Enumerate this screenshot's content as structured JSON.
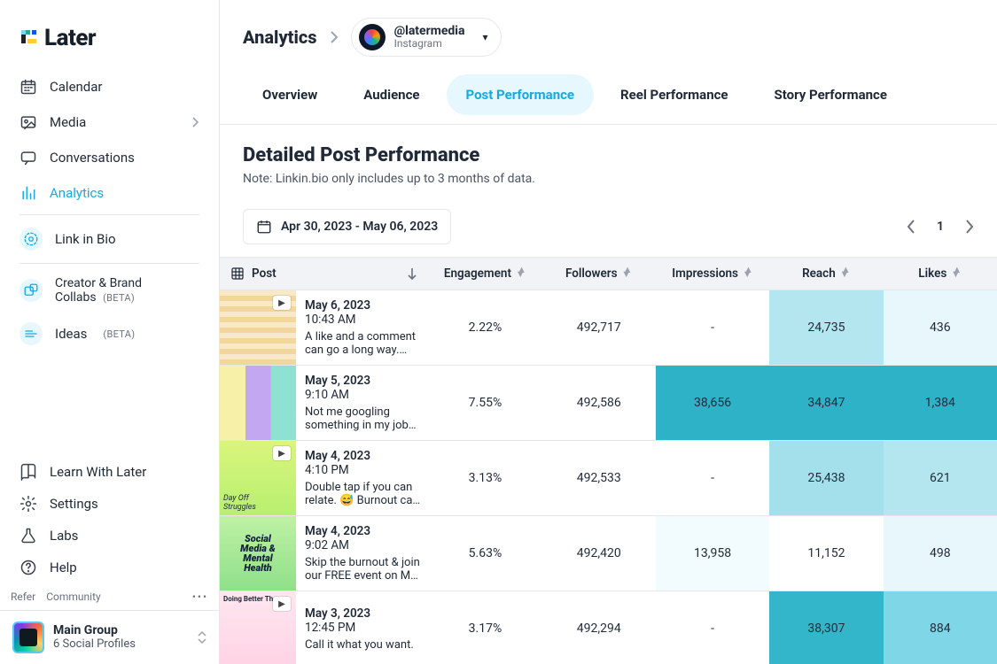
{
  "brand": {
    "name": "Later"
  },
  "sidebar": {
    "items": [
      {
        "label": "Calendar",
        "icon": "calendar"
      },
      {
        "label": "Media",
        "icon": "media",
        "chevron": true
      },
      {
        "label": "Conversations",
        "icon": "chat"
      },
      {
        "label": "Analytics",
        "icon": "bars",
        "active": true
      },
      {
        "label": "Link in Bio",
        "icon": "link",
        "special": true
      },
      {
        "label_line1": "Creator & Brand",
        "label_line2": "Collabs",
        "beta": "(BETA)",
        "icon": "collab",
        "special": true,
        "twoLine": true
      },
      {
        "label": "Ideas",
        "beta": "(BETA)",
        "icon": "ideas",
        "special": true
      }
    ],
    "bottom": [
      {
        "label": "Learn With Later",
        "icon": "book"
      },
      {
        "label": "Settings",
        "icon": "gear"
      },
      {
        "label": "Labs",
        "icon": "flask"
      },
      {
        "label": "Help",
        "icon": "help"
      }
    ],
    "refer": {
      "left": "Refer",
      "right": "Community"
    },
    "group": {
      "title": "Main Group",
      "sub": "6 Social Profiles"
    }
  },
  "header": {
    "crumb": "Analytics",
    "account": {
      "handle": "@latermedia",
      "platform": "Instagram"
    }
  },
  "tabs": [
    {
      "label": "Overview"
    },
    {
      "label": "Audience"
    },
    {
      "label": "Post Performance",
      "active": true
    },
    {
      "label": "Reel Performance"
    },
    {
      "label": "Story Performance"
    }
  ],
  "section": {
    "title": "Detailed Post Performance",
    "note": "Note: Linkin.bio only includes up to 3 months of data.",
    "dateRange": "Apr 30, 2023 - May 06, 2023",
    "page": "1"
  },
  "table": {
    "columns": {
      "post": "Post",
      "engagement": "Engagement",
      "followers": "Followers",
      "impressions": "Impressions",
      "reach": "Reach",
      "likes": "Likes"
    },
    "heat": {
      "none": "#ffffff",
      "faint": "#e8f7fb",
      "vfaint": "#f2fbfd",
      "light": "#b4e6ef",
      "ltmed": "#a4e0ec",
      "med": "#7fd6e6",
      "strong": "#2db2c7",
      "strong2": "#34b6ca"
    },
    "rows": [
      {
        "date": "May 6, 2023",
        "time": "10:43 AM",
        "caption": "A like and a comment can go a long way. 📣…",
        "engagement": "2.22%",
        "followers": "492,717",
        "impressions": {
          "v": "-",
          "c": "none"
        },
        "reach": {
          "v": "24,735",
          "c": "light"
        },
        "likes": {
          "v": "436",
          "c": "faint"
        },
        "thumb": {
          "bg": "repeating-linear-gradient(#f9e9c8 0 6px,#f3d79a 6px 12px)",
          "video": true
        }
      },
      {
        "date": "May 5, 2023",
        "time": "9:10 AM",
        "caption": "Not me googling something in my job…",
        "engagement": "7.55%",
        "followers": "492,586",
        "impressions": {
          "v": "38,656",
          "c": "strong"
        },
        "reach": {
          "v": "34,847",
          "c": "strong"
        },
        "likes": {
          "v": "1,384",
          "c": "strong"
        },
        "thumb": {
          "bg": "linear-gradient(90deg,#f6f0a8 0 34%,#c3a7f0 34% 67%,#8fe1d1 67%)",
          "video": false
        }
      },
      {
        "date": "May 4, 2023",
        "time": "4:10 PM",
        "caption": "Double tap if you can relate. 😅  Burnout ca…",
        "engagement": "3.13%",
        "followers": "492,533",
        "impressions": {
          "v": "-",
          "c": "none"
        },
        "reach": {
          "v": "25,438",
          "c": "ltmed"
        },
        "likes": {
          "v": "621",
          "c": "light"
        },
        "thumb": {
          "bg": "linear-gradient(#d9f57c,#b8ef6f)",
          "video": true,
          "bottomText": "Day Off\\nStruggles"
        }
      },
      {
        "date": "May 4, 2023",
        "time": "9:02 AM",
        "caption": "Skip the burnout & join our FREE event on M…",
        "engagement": "5.63%",
        "followers": "492,420",
        "impressions": {
          "v": "13,958",
          "c": "vfaint"
        },
        "reach": {
          "v": "11,152",
          "c": "none"
        },
        "likes": {
          "v": "498",
          "c": "faint"
        },
        "thumb": {
          "bg": "linear-gradient(#bff1a4,#8fe08a)",
          "video": false,
          "centerText": "Social\\nMedia &\\nMental\\nHealth"
        }
      },
      {
        "date": "May 3, 2023",
        "time": "12:45 PM",
        "caption": "Call it what you want.",
        "engagement": "3.17%",
        "followers": "492,294",
        "impressions": {
          "v": "-",
          "c": "none"
        },
        "reach": {
          "v": "38,307",
          "c": "strong2"
        },
        "likes": {
          "v": "884",
          "c": "med"
        },
        "thumb": {
          "bg": "linear-gradient(#ffe6ef,#ffd3e4)",
          "video": true,
          "topText": "Doing Better Than"
        }
      }
    ]
  }
}
